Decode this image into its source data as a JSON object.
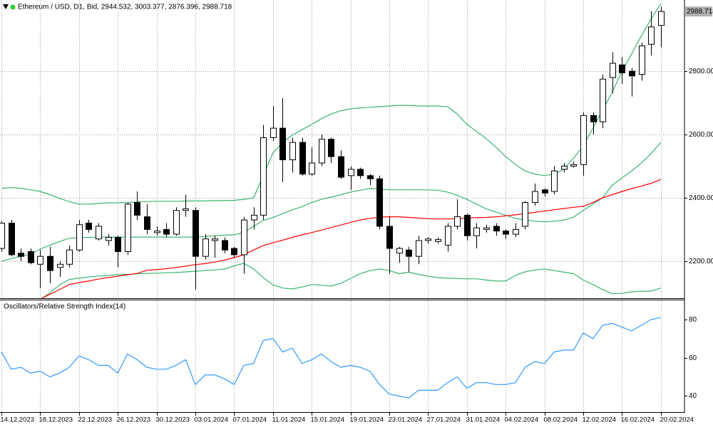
{
  "chart_data": [
    {
      "type": "candlestick",
      "title": "Ethereum / USD, D1, Bid, 2944.532, 3003.377, 2876.396, 2988.718",
      "categories": [
        "14.12.2023",
        null,
        null,
        null,
        "18.12.2023",
        null,
        null,
        null,
        "22.12.2023",
        null,
        null,
        null,
        "26.12.2023",
        null,
        null,
        null,
        "30.12.2023",
        null,
        null,
        null,
        "03.01.2024",
        null,
        null,
        null,
        "07.01.2024",
        null,
        null,
        null,
        "11.01.2024",
        null,
        null,
        null,
        "15.01.2024",
        null,
        null,
        null,
        "19.01.2024",
        null,
        null,
        null,
        "23.01.2024",
        null,
        null,
        null,
        "27.01.2024",
        null,
        null,
        null,
        "31.01.2024",
        null,
        null,
        null,
        "04.02.2024",
        null,
        null,
        null,
        "08.02.2024",
        null,
        null,
        null,
        "12.02.2024",
        null,
        null,
        null,
        "16.02.2024",
        null,
        null,
        null,
        "20.02.2024"
      ],
      "open": [
        2240,
        2320,
        2225,
        2230,
        2190,
        2215,
        2180,
        2190,
        2235,
        2320,
        2270,
        2265,
        2275,
        2230,
        2385,
        2340,
        2290,
        2300,
        2285,
        2360,
        2360,
        2215,
        2265,
        2265,
        2240,
        2220,
        2330,
        2345,
        2590,
        2620,
        2520,
        2575,
        2475,
        2510,
        2585,
        2530,
        2470,
        2490,
        2470,
        2460,
        2310,
        2225,
        2235,
        2215,
        2265,
        2262,
        2250,
        2310,
        2345,
        2280,
        2300,
        2310,
        2295,
        2285,
        2310,
        2385,
        2425,
        2420,
        2490,
        2500,
        2505,
        2660,
        2640,
        2780,
        2820,
        2800,
        2790,
        2885,
        2944.532
      ],
      "high": [
        2325,
        2330,
        2240,
        2240,
        2235,
        2245,
        2200,
        2250,
        2330,
        2330,
        2320,
        2285,
        2280,
        2385,
        2420,
        2380,
        2310,
        2320,
        2370,
        2410,
        2370,
        2285,
        2280,
        2275,
        2245,
        2340,
        2370,
        2630,
        2690,
        2715,
        2590,
        2590,
        2560,
        2600,
        2590,
        2550,
        2500,
        2495,
        2475,
        2470,
        2340,
        2245,
        2245,
        2280,
        2275,
        2275,
        2320,
        2395,
        2350,
        2320,
        2315,
        2320,
        2300,
        2320,
        2390,
        2445,
        2430,
        2500,
        2510,
        2515,
        2670,
        2670,
        2790,
        2860,
        2845,
        2810,
        2890,
        2990,
        3003.377
      ],
      "low": [
        2230,
        2215,
        2200,
        2190,
        2115,
        2130,
        2150,
        2180,
        2230,
        2290,
        2265,
        2250,
        2180,
        2220,
        2330,
        2285,
        2280,
        2275,
        2280,
        2340,
        2110,
        2205,
        2210,
        2225,
        2210,
        2160,
        2300,
        2330,
        2580,
        2450,
        2480,
        2470,
        2470,
        2500,
        2510,
        2460,
        2425,
        2460,
        2440,
        2300,
        2160,
        2195,
        2165,
        2190,
        2255,
        2255,
        2230,
        2300,
        2265,
        2240,
        2290,
        2280,
        2270,
        2275,
        2300,
        2375,
        2405,
        2410,
        2480,
        2495,
        2470,
        2600,
        2620,
        2730,
        2760,
        2720,
        2770,
        2850,
        2876.396
      ],
      "close": [
        2320,
        2220,
        2215,
        2195,
        2215,
        2170,
        2190,
        2235,
        2315,
        2300,
        2310,
        2275,
        2230,
        2380,
        2345,
        2300,
        2295,
        2285,
        2360,
        2365,
        2215,
        2270,
        2270,
        2235,
        2220,
        2330,
        2345,
        2590,
        2620,
        2520,
        2575,
        2475,
        2510,
        2585,
        2530,
        2465,
        2490,
        2470,
        2460,
        2310,
        2240,
        2240,
        2215,
        2265,
        2270,
        2268,
        2310,
        2340,
        2280,
        2305,
        2305,
        2295,
        2285,
        2300,
        2385,
        2420,
        2415,
        2485,
        2500,
        2505,
        2660,
        2640,
        2775,
        2825,
        2795,
        2785,
        2880,
        2940,
        2988.718
      ],
      "up_color": "#ffffff",
      "down_color": "#000000",
      "line_color": "#000000",
      "series": [
        {
          "color": "#3cb371",
          "values": [
            2430,
            2432,
            2430,
            2425,
            2420,
            2410,
            2398,
            2388,
            2380,
            2380,
            2382,
            2384,
            2384,
            2385,
            2387,
            2388,
            2389,
            2389,
            2389,
            2390,
            2390,
            2390,
            2391,
            2391,
            2392,
            2395,
            2400,
            2470,
            2542,
            2575,
            2598,
            2615,
            2632,
            2650,
            2665,
            2675,
            2681,
            2684,
            2686,
            2688,
            2690,
            2692,
            2692,
            2690,
            2690,
            2690,
            2688,
            2665,
            2632,
            2610,
            2587,
            2560,
            2530,
            2505,
            2485,
            2475,
            2470,
            2475,
            2490,
            2525,
            2564,
            2620,
            2676,
            2735,
            2800,
            2855,
            2912,
            2965,
            3013
          ]
        },
        {
          "color": "#3cb371",
          "values": [
            2200,
            2208,
            2215,
            2222,
            2238,
            2250,
            2262,
            2272,
            2274,
            2275,
            2276,
            2276,
            2276,
            2276,
            2276,
            2276,
            2276,
            2276,
            2276,
            2276,
            2276,
            2278,
            2280,
            2282,
            2283,
            2290,
            2310,
            2328,
            2338,
            2350,
            2362,
            2372,
            2385,
            2395,
            2402,
            2410,
            2418,
            2424,
            2429,
            2428,
            2425,
            2425,
            2425,
            2425,
            2425,
            2424,
            2418,
            2408,
            2395,
            2380,
            2365,
            2355,
            2345,
            2335,
            2330,
            2326,
            2324,
            2326,
            2330,
            2339,
            2360,
            2380,
            2400,
            2440,
            2463,
            2485,
            2510,
            2540,
            2575
          ]
        },
        {
          "color": "#3cb371",
          "values": [
            2060,
            2064,
            2068,
            2072,
            2078,
            2100,
            2125,
            2142,
            2146,
            2150,
            2153,
            2155,
            2157,
            2158,
            2160,
            2161,
            2162,
            2163,
            2164,
            2166,
            2168,
            2170,
            2172,
            2175,
            2185,
            2193,
            2175,
            2148,
            2125,
            2115,
            2112,
            2118,
            2126,
            2124,
            2121,
            2130,
            2145,
            2160,
            2170,
            2175,
            2170,
            2160,
            2165,
            2158,
            2152,
            2148,
            2146,
            2145,
            2144,
            2144,
            2140,
            2137,
            2137,
            2155,
            2166,
            2172,
            2175,
            2170,
            2165,
            2160,
            2140,
            2126,
            2110,
            2097,
            2098,
            2103,
            2105,
            2105,
            2115
          ]
        },
        {
          "color": "#ff0000",
          "values": [
            2050,
            2058,
            2065,
            2072,
            2080,
            2095,
            2110,
            2126,
            2132,
            2137,
            2143,
            2148,
            2152,
            2157,
            2161,
            2171,
            2173,
            2176,
            2180,
            2184,
            2189,
            2192,
            2197,
            2203,
            2211,
            2220,
            2235,
            2249,
            2258,
            2266,
            2275,
            2283,
            2290,
            2298,
            2306,
            2314,
            2322,
            2330,
            2335,
            2339,
            2340,
            2340,
            2338,
            2336,
            2334,
            2333,
            2333,
            2334,
            2336,
            2337,
            2338,
            2340,
            2343,
            2346,
            2350,
            2354,
            2358,
            2362,
            2366,
            2370,
            2373,
            2385,
            2400,
            2410,
            2420,
            2429,
            2437,
            2446,
            2458
          ]
        }
      ],
      "ylim": [
        2085,
        3025
      ],
      "yticks": [
        {
          "value": 2200,
          "label": "2200.000"
        },
        {
          "value": 2400,
          "label": "2400.000"
        },
        {
          "value": 2600,
          "label": "2600.000"
        },
        {
          "value": 2800,
          "label": "2800.000"
        }
      ],
      "grid": true
    },
    {
      "type": "line",
      "title": "Oscillators/Relative Strength Index(14)",
      "color": "#3399ff",
      "values": [
        63,
        54,
        55,
        52,
        53,
        50,
        52,
        55,
        61,
        59,
        56,
        56,
        52,
        62,
        59,
        55,
        54,
        54,
        56,
        59,
        46,
        51,
        51,
        49,
        46,
        56,
        57,
        69,
        70,
        63,
        65,
        57,
        59,
        62,
        58,
        55,
        56,
        55,
        53,
        46,
        41,
        40,
        39,
        43,
        43,
        43,
        47,
        50,
        44,
        47,
        47,
        46,
        46,
        47,
        55,
        58,
        57,
        63,
        64,
        64,
        73,
        70,
        77,
        78,
        76,
        74,
        77,
        80,
        81
      ],
      "ylim": [
        32,
        90
      ],
      "yticks": [
        40,
        60,
        80
      ]
    }
  ]
}
